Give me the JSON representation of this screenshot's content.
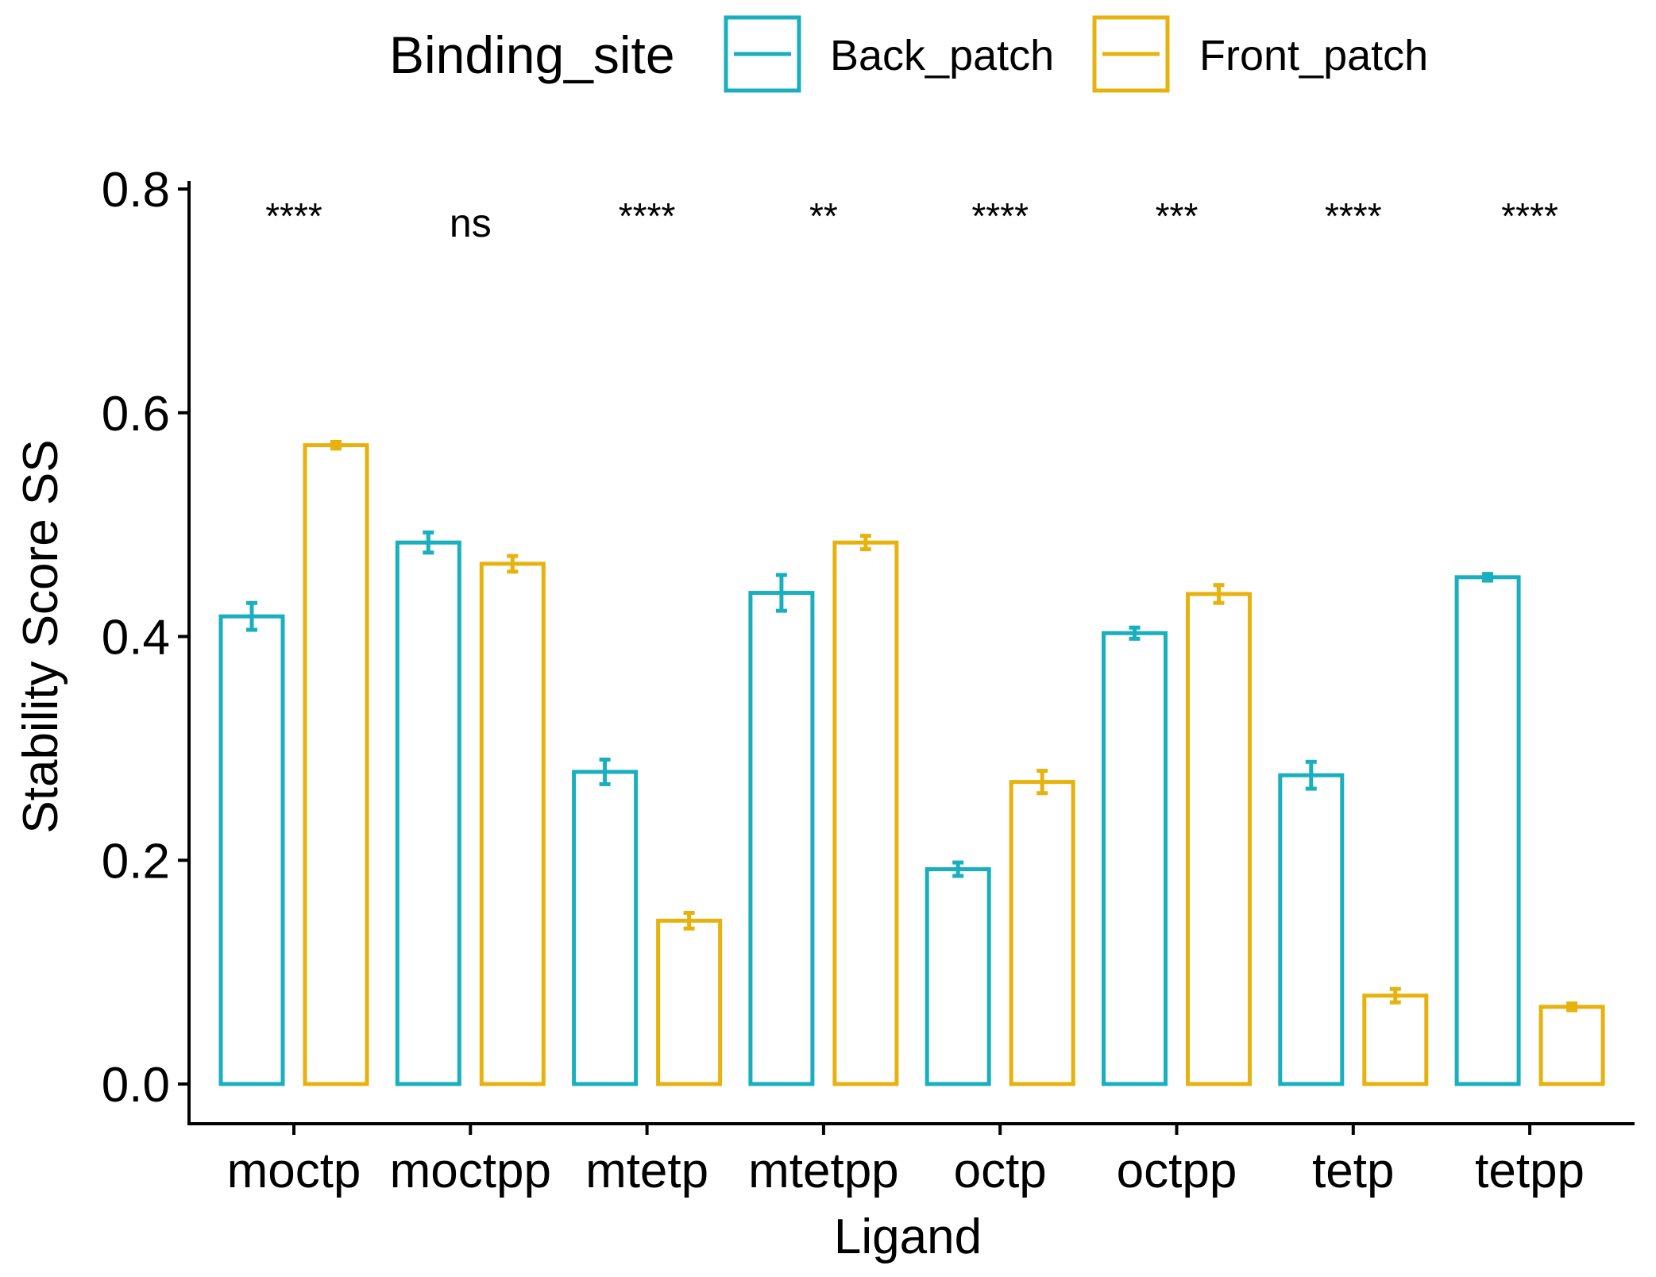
{
  "chart_data": {
    "type": "bar",
    "title": "",
    "xlabel": "Ligand",
    "ylabel": "Stability Score SS",
    "ylim": [
      0,
      0.8
    ],
    "yticks": [
      {
        "value": 0.0,
        "label": "0.0"
      },
      {
        "value": 0.2,
        "label": "0.2"
      },
      {
        "value": 0.4,
        "label": "0.4"
      },
      {
        "value": 0.6,
        "label": "0.6"
      },
      {
        "value": 0.8,
        "label": "0.8"
      }
    ],
    "categories": [
      "moctp",
      "moctpp",
      "mtetp",
      "mtetpp",
      "octp",
      "octpp",
      "tetp",
      "tetpp"
    ],
    "legend": {
      "title": "Binding_site",
      "position": "top"
    },
    "series": [
      {
        "name": "Back_patch",
        "color": "#1AAFBF",
        "values": [
          0.418,
          0.484,
          0.279,
          0.439,
          0.192,
          0.403,
          0.276,
          0.453
        ],
        "errors": [
          0.012,
          0.009,
          0.011,
          0.016,
          0.006,
          0.005,
          0.012,
          0.003
        ]
      },
      {
        "name": "Front_patch",
        "color": "#E8B20E",
        "values": [
          0.571,
          0.465,
          0.146,
          0.484,
          0.27,
          0.438,
          0.079,
          0.069
        ],
        "errors": [
          0.003,
          0.007,
          0.007,
          0.006,
          0.01,
          0.008,
          0.006,
          0.003
        ]
      }
    ],
    "significance": [
      "****",
      "ns",
      "****",
      "**",
      "****",
      "***",
      "****",
      "****"
    ]
  }
}
